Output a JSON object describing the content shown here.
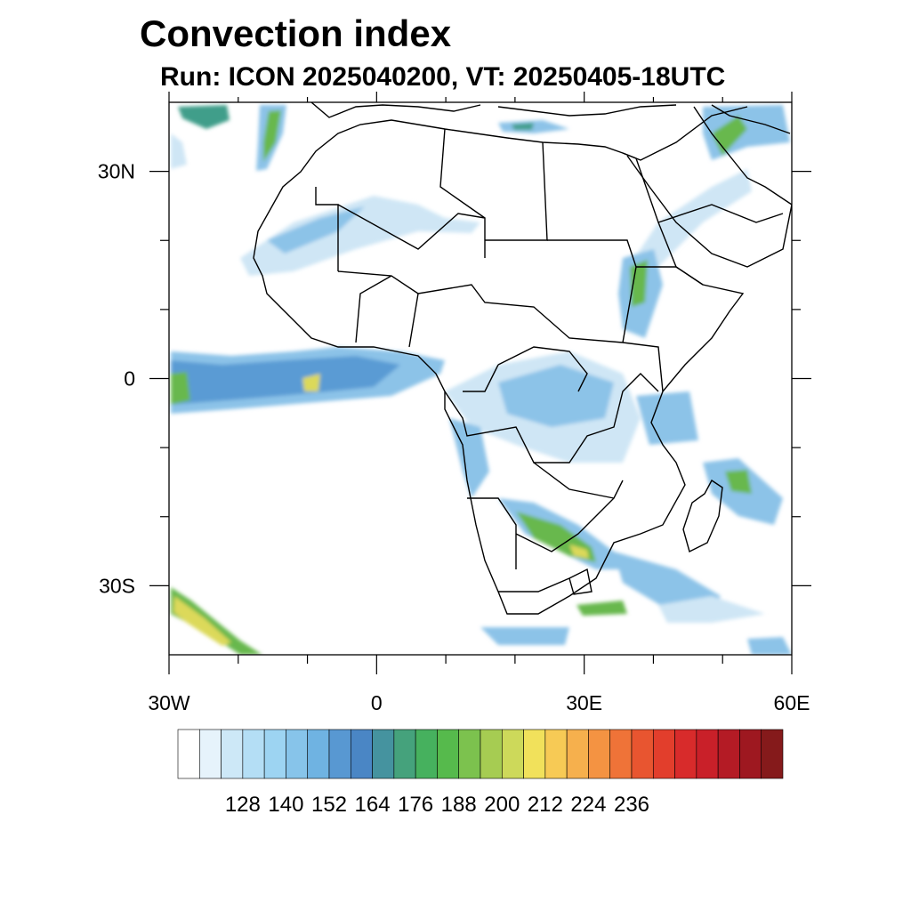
{
  "map": {
    "title": "Convection index",
    "subtitle": "Run: ICON 2025040200,  VT: 20250405-18UTC",
    "lon_range": [
      -30,
      60
    ],
    "lat_range": [
      -40,
      40
    ],
    "y_ticks": [
      {
        "lat": 30,
        "label": "30N"
      },
      {
        "lat": 0,
        "label": "0"
      },
      {
        "lat": -30,
        "label": "30S"
      }
    ],
    "x_ticks": [
      {
        "lon": -30,
        "label": "30W"
      },
      {
        "lon": 0,
        "label": "0"
      },
      {
        "lon": 30,
        "label": "30E"
      },
      {
        "lon": 60,
        "label": "60E"
      }
    ]
  },
  "colorbar": {
    "colors": [
      "#ffffff",
      "#e6f3fb",
      "#cde8f7",
      "#b4def5",
      "#9dd4f2",
      "#87c4ea",
      "#6fb3e2",
      "#5898d2",
      "#4a86c5",
      "#45939f",
      "#45a27c",
      "#46b15e",
      "#56ba4c",
      "#7cc24e",
      "#a6cc52",
      "#cdd95a",
      "#f1e15b",
      "#f7ca55",
      "#f6b04d",
      "#f49342",
      "#ef7338",
      "#e85530",
      "#e23e2c",
      "#d82b2b",
      "#c92029",
      "#b41b25",
      "#9e1820",
      "#851a1b"
    ],
    "labels": [
      "128",
      "140",
      "152",
      "164",
      "176",
      "188",
      "200",
      "212",
      "224",
      "236"
    ]
  },
  "field_colors": {
    "light": "#cfe6f5",
    "mid": "#8cc3e8",
    "blue": "#5a9bd4",
    "teal": "#3f9e8a",
    "green": "#67b84e",
    "yellow": "#dcd95a"
  }
}
